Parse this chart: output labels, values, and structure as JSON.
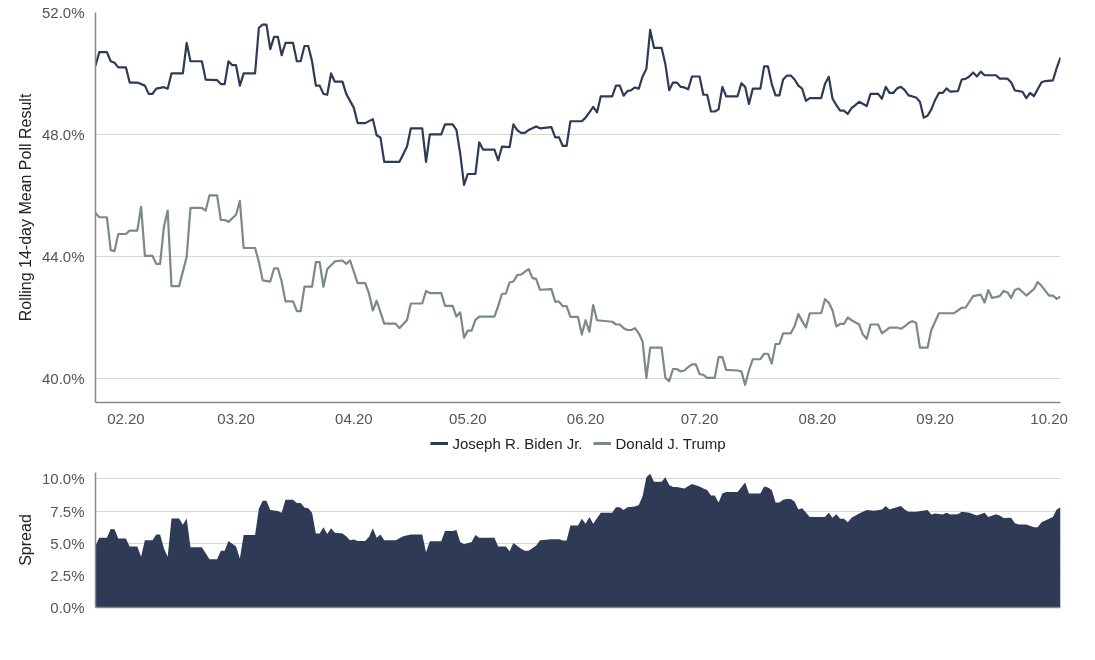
{
  "chart_data": [
    {
      "type": "line",
      "ylabel": "Rolling 14-day Mean Poll Result",
      "xlim": [
        "2020-01-24",
        "2020-10-04"
      ],
      "ylim": [
        39.2,
        52
      ],
      "xticks": [
        {
          "value": "2020-02-01",
          "label": "02.20"
        },
        {
          "value": "2020-03-01",
          "label": "03.20"
        },
        {
          "value": "2020-04-01",
          "label": "04.20"
        },
        {
          "value": "2020-05-01",
          "label": "05.20"
        },
        {
          "value": "2020-06-01",
          "label": "06.20"
        },
        {
          "value": "2020-07-01",
          "label": "07.20"
        },
        {
          "value": "2020-08-01",
          "label": "08.20"
        },
        {
          "value": "2020-09-01",
          "label": "09.20"
        },
        {
          "value": "2020-10-01",
          "label": "10.20"
        }
      ],
      "yticks": [
        {
          "value": 40,
          "label": "40.0%"
        },
        {
          "value": 44,
          "label": "44.0%"
        },
        {
          "value": 48,
          "label": "48.0%"
        },
        {
          "value": 52,
          "label": "52.0%"
        }
      ],
      "grid": "y",
      "legend": "bottom",
      "series": [
        {
          "name": "Joseph R. Biden Jr.",
          "color": "#2e3a56",
          "x": [
            "2020-01-24",
            "2020-01-25",
            "2020-01-27",
            "2020-01-28",
            "2020-01-29",
            "2020-01-30",
            "2020-02-01",
            "2020-02-02",
            "2020-02-04",
            "2020-02-06",
            "2020-02-07",
            "2020-02-08",
            "2020-02-09",
            "2020-02-11",
            "2020-02-12",
            "2020-02-13",
            "2020-02-16",
            "2020-02-17",
            "2020-02-18",
            "2020-02-21",
            "2020-02-22",
            "2020-02-25",
            "2020-02-26",
            "2020-02-27",
            "2020-02-28",
            "2020-02-29",
            "2020-03-01",
            "2020-03-02",
            "2020-03-03",
            "2020-03-06",
            "2020-03-07",
            "2020-03-08",
            "2020-03-09",
            "2020-03-10",
            "2020-03-11",
            "2020-03-12",
            "2020-03-13",
            "2020-03-14",
            "2020-03-16",
            "2020-03-17",
            "2020-03-18",
            "2020-03-19",
            "2020-03-20",
            "2020-03-21",
            "2020-03-22",
            "2020-03-23",
            "2020-03-24",
            "2020-03-25",
            "2020-03-26",
            "2020-03-27",
            "2020-03-29",
            "2020-03-30",
            "2020-04-01",
            "2020-04-02",
            "2020-04-04",
            "2020-04-06",
            "2020-04-07",
            "2020-04-08",
            "2020-04-09",
            "2020-04-13",
            "2020-04-14",
            "2020-04-15",
            "2020-04-16",
            "2020-04-19",
            "2020-04-20",
            "2020-04-21",
            "2020-04-24",
            "2020-04-25",
            "2020-04-27",
            "2020-04-28",
            "2020-04-29",
            "2020-04-30",
            "2020-05-01",
            "2020-05-03",
            "2020-05-04",
            "2020-05-05",
            "2020-05-08",
            "2020-05-09",
            "2020-05-10",
            "2020-05-12",
            "2020-05-13",
            "2020-05-14",
            "2020-05-15",
            "2020-05-16",
            "2020-05-17",
            "2020-05-19",
            "2020-05-20",
            "2020-05-23",
            "2020-05-24",
            "2020-05-25",
            "2020-05-26",
            "2020-05-27",
            "2020-05-28",
            "2020-05-31",
            "2020-06-01",
            "2020-06-02",
            "2020-06-03",
            "2020-06-04",
            "2020-06-05",
            "2020-06-08",
            "2020-06-09",
            "2020-06-10",
            "2020-06-11",
            "2020-06-12",
            "2020-06-13",
            "2020-06-14",
            "2020-06-15",
            "2020-06-16",
            "2020-06-17",
            "2020-06-18",
            "2020-06-19",
            "2020-06-21",
            "2020-06-22",
            "2020-06-23",
            "2020-06-24",
            "2020-06-25",
            "2020-06-26",
            "2020-06-27",
            "2020-06-28",
            "2020-06-29",
            "2020-07-01",
            "2020-07-02",
            "2020-07-03",
            "2020-07-04",
            "2020-07-05",
            "2020-07-06",
            "2020-07-07",
            "2020-07-08",
            "2020-07-11",
            "2020-07-12",
            "2020-07-13",
            "2020-07-14",
            "2020-07-15",
            "2020-07-17",
            "2020-07-18",
            "2020-07-19",
            "2020-07-20",
            "2020-07-21",
            "2020-07-22",
            "2020-07-23",
            "2020-07-24",
            "2020-07-25",
            "2020-07-26",
            "2020-07-27",
            "2020-07-28",
            "2020-07-29",
            "2020-07-30",
            "2020-08-02",
            "2020-08-03",
            "2020-08-04",
            "2020-08-05",
            "2020-08-06",
            "2020-08-07",
            "2020-08-08",
            "2020-08-09",
            "2020-08-10",
            "2020-08-11",
            "2020-08-12",
            "2020-08-14",
            "2020-08-15",
            "2020-08-17",
            "2020-08-18",
            "2020-08-19",
            "2020-08-20",
            "2020-08-21",
            "2020-08-22",
            "2020-08-23",
            "2020-08-24",
            "2020-08-25",
            "2020-08-27",
            "2020-08-28",
            "2020-08-29",
            "2020-08-30",
            "2020-08-31",
            "2020-09-01",
            "2020-09-02",
            "2020-09-03",
            "2020-09-04",
            "2020-09-05",
            "2020-09-07",
            "2020-09-08",
            "2020-09-09",
            "2020-09-10",
            "2020-09-11",
            "2020-09-12",
            "2020-09-13",
            "2020-09-14",
            "2020-09-17",
            "2020-09-18",
            "2020-09-20",
            "2020-09-21",
            "2020-09-22",
            "2020-09-23",
            "2020-09-24",
            "2020-09-25",
            "2020-09-26",
            "2020-09-27",
            "2020-09-28",
            "2020-09-29",
            "2020-09-30",
            "2020-10-02",
            "2020-10-03",
            "2020-10-04"
          ],
          "values": [
            50.25,
            50.7,
            50.7,
            50.4,
            50.35,
            50.2,
            50.2,
            49.7,
            49.7,
            49.6,
            49.33,
            49.33,
            49.5,
            49.55,
            49.5,
            50.0,
            50.0,
            51.0,
            50.4,
            50.4,
            49.8,
            49.78,
            49.65,
            49.65,
            50.4,
            50.27,
            50.27,
            49.6,
            50.0,
            50.0,
            51.5,
            51.6,
            51.6,
            50.8,
            51.2,
            51.2,
            50.6,
            51.0,
            51.0,
            50.4,
            50.4,
            50.9,
            50.9,
            50.4,
            49.6,
            49.6,
            49.33,
            49.3,
            50.0,
            49.73,
            49.73,
            49.33,
            48.87,
            48.37,
            48.37,
            48.5,
            47.97,
            47.9,
            47.1,
            47.1,
            47.35,
            47.6,
            48.2,
            48.2,
            47.1,
            48.0,
            48.0,
            48.33,
            48.33,
            48.15,
            47.37,
            46.34,
            46.7,
            46.7,
            47.74,
            47.5,
            47.5,
            47.15,
            47.6,
            47.58,
            48.33,
            48.14,
            48.05,
            48.05,
            48.14,
            48.26,
            48.2,
            48.24,
            47.9,
            47.9,
            47.62,
            47.62,
            48.43,
            48.43,
            48.55,
            48.72,
            48.9,
            48.72,
            49.25,
            49.25,
            49.6,
            49.6,
            49.27,
            49.42,
            49.45,
            49.54,
            49.5,
            49.9,
            50.15,
            51.43,
            50.84,
            50.84,
            50.3,
            49.45,
            49.7,
            49.7,
            49.56,
            49.54,
            49.48,
            49.9,
            49.9,
            49.3,
            49.3,
            48.75,
            48.75,
            48.82,
            49.56,
            49.25,
            49.25,
            49.68,
            49.56,
            49.0,
            49.5,
            49.5,
            50.23,
            50.23,
            49.65,
            49.28,
            49.28,
            49.8,
            49.93,
            49.93,
            49.8,
            49.6,
            49.5,
            49.1,
            49.19,
            49.19,
            49.65,
            49.89,
            49.17,
            48.96,
            48.78,
            48.78,
            48.67,
            48.86,
            48.96,
            49.07,
            48.93,
            49.33,
            49.33,
            49.17,
            49.56,
            49.36,
            49.36,
            49.51,
            49.56,
            49.45,
            49.28,
            49.21,
            49.07,
            48.55,
            48.61,
            48.82,
            49.13,
            49.36,
            49.36,
            49.51,
            49.4,
            49.42,
            49.8,
            49.82,
            49.9,
            50.03,
            49.9,
            50.06,
            49.94,
            49.94,
            49.83,
            49.83,
            49.71,
            49.44,
            49.42,
            49.4,
            49.19,
            49.36,
            49.25,
            49.48,
            49.71,
            49.75,
            49.77,
            50.18,
            50.52
          ]
        },
        {
          "name": "Donald J. Trump",
          "color": "#7a8c80",
          "x": [
            "2020-01-24",
            "2020-01-25",
            "2020-01-27",
            "2020-01-28",
            "2020-01-29",
            "2020-01-30",
            "2020-02-01",
            "2020-02-02",
            "2020-02-04",
            "2020-02-05",
            "2020-02-06",
            "2020-02-08",
            "2020-02-09",
            "2020-02-10",
            "2020-02-11",
            "2020-02-12",
            "2020-02-13",
            "2020-02-15",
            "2020-02-17",
            "2020-02-18",
            "2020-02-21",
            "2020-02-22",
            "2020-02-23",
            "2020-02-25",
            "2020-02-26",
            "2020-02-27",
            "2020-02-28",
            "2020-03-01",
            "2020-03-02",
            "2020-03-03",
            "2020-03-06",
            "2020-03-07",
            "2020-03-08",
            "2020-03-10",
            "2020-03-11",
            "2020-03-12",
            "2020-03-13",
            "2020-03-14",
            "2020-03-16",
            "2020-03-17",
            "2020-03-18",
            "2020-03-19",
            "2020-03-21",
            "2020-03-22",
            "2020-03-23",
            "2020-03-24",
            "2020-03-25",
            "2020-03-27",
            "2020-03-29",
            "2020-03-30",
            "2020-03-31",
            "2020-04-02",
            "2020-04-04",
            "2020-04-05",
            "2020-04-06",
            "2020-04-07",
            "2020-04-09",
            "2020-04-12",
            "2020-04-13",
            "2020-04-15",
            "2020-04-16",
            "2020-04-19",
            "2020-04-20",
            "2020-04-21",
            "2020-04-24",
            "2020-04-25",
            "2020-04-27",
            "2020-04-28",
            "2020-04-29",
            "2020-04-30",
            "2020-05-01",
            "2020-05-02",
            "2020-05-03",
            "2020-05-04",
            "2020-05-08",
            "2020-05-09",
            "2020-05-10",
            "2020-05-11",
            "2020-05-12",
            "2020-05-13",
            "2020-05-14",
            "2020-05-15",
            "2020-05-17",
            "2020-05-18",
            "2020-05-19",
            "2020-05-20",
            "2020-05-23",
            "2020-05-24",
            "2020-05-25",
            "2020-05-26",
            "2020-05-27",
            "2020-05-28",
            "2020-05-30",
            "2020-05-31",
            "2020-06-01",
            "2020-06-02",
            "2020-06-03",
            "2020-06-04",
            "2020-06-08",
            "2020-06-09",
            "2020-06-10",
            "2020-06-11",
            "2020-06-12",
            "2020-06-13",
            "2020-06-14",
            "2020-06-15",
            "2020-06-16",
            "2020-06-17",
            "2020-06-18",
            "2020-06-21",
            "2020-06-22",
            "2020-06-23",
            "2020-06-24",
            "2020-06-25",
            "2020-06-26",
            "2020-06-27",
            "2020-06-28",
            "2020-06-29",
            "2020-06-30",
            "2020-07-01",
            "2020-07-02",
            "2020-07-03",
            "2020-07-05",
            "2020-07-06",
            "2020-07-07",
            "2020-07-08",
            "2020-07-11",
            "2020-07-12",
            "2020-07-13",
            "2020-07-14",
            "2020-07-15",
            "2020-07-17",
            "2020-07-18",
            "2020-07-19",
            "2020-07-20",
            "2020-07-21",
            "2020-07-22",
            "2020-07-23",
            "2020-07-25",
            "2020-07-26",
            "2020-07-27",
            "2020-07-28",
            "2020-07-29",
            "2020-07-30",
            "2020-08-02",
            "2020-08-03",
            "2020-08-04",
            "2020-08-05",
            "2020-08-06",
            "2020-08-07",
            "2020-08-08",
            "2020-08-09",
            "2020-08-10",
            "2020-08-12",
            "2020-08-13",
            "2020-08-14",
            "2020-08-15",
            "2020-08-17",
            "2020-08-18",
            "2020-08-20",
            "2020-08-22",
            "2020-08-23",
            "2020-08-24",
            "2020-08-25",
            "2020-08-26",
            "2020-08-27",
            "2020-08-28",
            "2020-08-30",
            "2020-08-31",
            "2020-09-02",
            "2020-09-06",
            "2020-09-08",
            "2020-09-09",
            "2020-09-11",
            "2020-09-13",
            "2020-09-14",
            "2020-09-15",
            "2020-09-16",
            "2020-09-18",
            "2020-09-19",
            "2020-09-20",
            "2020-09-21",
            "2020-09-22",
            "2020-09-23",
            "2020-09-25",
            "2020-09-27",
            "2020-09-28",
            "2020-09-29",
            "2020-10-01",
            "2020-10-02",
            "2020-10-03",
            "2020-10-04"
          ],
          "values": [
            45.42,
            45.28,
            45.28,
            44.2,
            44.17,
            44.73,
            44.73,
            44.84,
            44.84,
            45.62,
            44.01,
            44.01,
            43.75,
            43.75,
            44.96,
            45.5,
            43.02,
            43.02,
            43.98,
            45.59,
            45.59,
            45.5,
            46.0,
            46.0,
            45.19,
            45.19,
            45.13,
            45.36,
            45.82,
            44.27,
            44.27,
            43.81,
            43.21,
            43.17,
            43.6,
            43.6,
            43.17,
            42.52,
            42.52,
            42.2,
            42.2,
            43.0,
            43.0,
            43.81,
            43.81,
            43.0,
            43.58,
            43.83,
            43.86,
            43.75,
            43.86,
            43.12,
            43.12,
            42.77,
            42.22,
            42.54,
            41.79,
            41.79,
            41.64,
            41.91,
            42.45,
            42.45,
            42.86,
            42.79,
            42.79,
            42.37,
            42.37,
            42.02,
            42.16,
            41.33,
            41.56,
            41.56,
            41.91,
            42.02,
            42.02,
            42.37,
            42.77,
            42.77,
            43.14,
            43.17,
            43.38,
            43.4,
            43.58,
            43.29,
            43.25,
            42.9,
            42.92,
            42.51,
            42.51,
            42.36,
            42.36,
            42.01,
            42.01,
            41.43,
            41.9,
            41.52,
            42.4,
            41.9,
            41.85,
            41.76,
            41.76,
            41.64,
            41.58,
            41.58,
            41.64,
            41.47,
            41.2,
            40.01,
            41.0,
            41.0,
            40.01,
            39.9,
            40.3,
            40.3,
            40.22,
            40.25,
            40.36,
            40.45,
            40.45,
            40.13,
            40.11,
            40.01,
            40.01,
            40.69,
            40.69,
            40.27,
            40.25,
            40.22,
            39.78,
            40.25,
            40.62,
            40.62,
            40.8,
            40.8,
            40.48,
            41.12,
            41.12,
            41.47,
            41.47,
            41.7,
            42.1,
            41.87,
            41.66,
            42.13,
            42.13,
            42.59,
            42.48,
            42.22,
            41.7,
            41.78,
            41.78,
            41.99,
            41.9,
            41.76,
            41.43,
            41.29,
            41.76,
            41.76,
            41.47,
            41.66,
            41.66,
            41.62,
            41.7,
            41.81,
            41.87,
            41.81,
            41.0,
            41.0,
            41.58,
            42.13,
            42.13,
            42.31,
            42.31,
            42.69,
            42.74,
            42.48,
            42.89,
            42.63,
            42.69,
            42.86,
            42.82,
            42.63,
            42.89,
            42.94,
            42.71,
            42.92,
            43.15,
            43.03,
            42.71,
            42.71,
            42.6,
            42.68
          ]
        }
      ]
    },
    {
      "type": "area",
      "ylabel": "Spread",
      "xlim": [
        "2020-01-24",
        "2020-10-04"
      ],
      "ylim": [
        0,
        10.5
      ],
      "yticks": [
        {
          "value": 0,
          "label": "0.0%"
        },
        {
          "value": 2.5,
          "label": "2.5%"
        },
        {
          "value": 5,
          "label": "5.0%"
        },
        {
          "value": 7.5,
          "label": "7.5%"
        },
        {
          "value": 10,
          "label": "10.0%"
        }
      ],
      "grid": "y",
      "tick_labels": "y",
      "color": "#2e3a56",
      "x": [
        "2020-01-24",
        "2020-01-25",
        "2020-01-27",
        "2020-01-28",
        "2020-01-29",
        "2020-01-30",
        "2020-02-01",
        "2020-02-02",
        "2020-02-04",
        "2020-02-05",
        "2020-02-06",
        "2020-02-08",
        "2020-02-09",
        "2020-02-10",
        "2020-02-11",
        "2020-02-12",
        "2020-02-13",
        "2020-02-15",
        "2020-02-16",
        "2020-02-17",
        "2020-02-18",
        "2020-02-21",
        "2020-02-23",
        "2020-02-25",
        "2020-02-26",
        "2020-02-27",
        "2020-02-28",
        "2020-03-01",
        "2020-03-02",
        "2020-03-03",
        "2020-03-06",
        "2020-03-07",
        "2020-03-08",
        "2020-03-09",
        "2020-03-10",
        "2020-03-12",
        "2020-03-13",
        "2020-03-14",
        "2020-03-16",
        "2020-03-17",
        "2020-03-18",
        "2020-03-19",
        "2020-03-20",
        "2020-03-21",
        "2020-03-22",
        "2020-03-23",
        "2020-03-24",
        "2020-03-25",
        "2020-03-26",
        "2020-03-27",
        "2020-03-29",
        "2020-03-30",
        "2020-03-31",
        "2020-04-01",
        "2020-04-02",
        "2020-04-04",
        "2020-04-05",
        "2020-04-06",
        "2020-04-07",
        "2020-04-08",
        "2020-04-09",
        "2020-04-12",
        "2020-04-14",
        "2020-04-16",
        "2020-04-19",
        "2020-04-20",
        "2020-04-21",
        "2020-04-24",
        "2020-04-25",
        "2020-04-27",
        "2020-04-28",
        "2020-04-29",
        "2020-04-30",
        "2020-05-02",
        "2020-05-03",
        "2020-05-04",
        "2020-05-08",
        "2020-05-09",
        "2020-05-11",
        "2020-05-12",
        "2020-05-13",
        "2020-05-15",
        "2020-05-16",
        "2020-05-17",
        "2020-05-19",
        "2020-05-20",
        "2020-05-23",
        "2020-05-25",
        "2020-05-26",
        "2020-05-27",
        "2020-05-28",
        "2020-05-30",
        "2020-05-31",
        "2020-06-01",
        "2020-06-02",
        "2020-06-03",
        "2020-06-05",
        "2020-06-08",
        "2020-06-09",
        "2020-06-10",
        "2020-06-11",
        "2020-06-12",
        "2020-06-14",
        "2020-06-15",
        "2020-06-16",
        "2020-06-17",
        "2020-06-18",
        "2020-06-19",
        "2020-06-21",
        "2020-06-22",
        "2020-06-23",
        "2020-06-24",
        "2020-06-25",
        "2020-06-27",
        "2020-06-29",
        "2020-07-01",
        "2020-07-02",
        "2020-07-03",
        "2020-07-04",
        "2020-07-05",
        "2020-07-06",
        "2020-07-07",
        "2020-07-08",
        "2020-07-11",
        "2020-07-13",
        "2020-07-14",
        "2020-07-17",
        "2020-07-18",
        "2020-07-19",
        "2020-07-20",
        "2020-07-21",
        "2020-07-22",
        "2020-07-23",
        "2020-07-24",
        "2020-07-25",
        "2020-07-26",
        "2020-07-27",
        "2020-07-28",
        "2020-07-30",
        "2020-08-03",
        "2020-08-04",
        "2020-08-05",
        "2020-08-06",
        "2020-08-07",
        "2020-08-08",
        "2020-08-09",
        "2020-08-10",
        "2020-08-12",
        "2020-08-14",
        "2020-08-16",
        "2020-08-18",
        "2020-08-19",
        "2020-08-20",
        "2020-08-21",
        "2020-08-23",
        "2020-08-24",
        "2020-08-25",
        "2020-08-27",
        "2020-08-30",
        "2020-08-31",
        "2020-09-01",
        "2020-09-03",
        "2020-09-04",
        "2020-09-05",
        "2020-09-07",
        "2020-09-08",
        "2020-09-10",
        "2020-09-12",
        "2020-09-14",
        "2020-09-15",
        "2020-09-17",
        "2020-09-18",
        "2020-09-19",
        "2020-09-21",
        "2020-09-22",
        "2020-09-23",
        "2020-09-25",
        "2020-09-27",
        "2020-09-28",
        "2020-09-29",
        "2020-10-01",
        "2020-10-02",
        "2020-10-03",
        "2020-10-04"
      ],
      "values": [
        4.83,
        5.42,
        5.42,
        6.11,
        6.09,
        5.36,
        5.36,
        4.75,
        4.75,
        3.94,
        5.23,
        5.23,
        5.68,
        5.68,
        4.61,
        3.94,
        6.92,
        6.92,
        6.43,
        6.92,
        4.69,
        4.69,
        3.75,
        3.75,
        4.42,
        4.42,
        5.17,
        4.75,
        3.81,
        5.63,
        5.63,
        7.69,
        8.31,
        8.31,
        7.59,
        7.51,
        7.37,
        8.39,
        8.39,
        8.12,
        8.12,
        7.77,
        7.72,
        7.37,
        5.76,
        5.76,
        6.25,
        5.71,
        6.17,
        5.82,
        5.76,
        5.55,
        5.23,
        5.28,
        5.17,
        5.17,
        5.5,
        6.17,
        5.42,
        5.68,
        5.23,
        5.23,
        5.55,
        5.68,
        5.68,
        4.29,
        5.15,
        5.15,
        5.95,
        5.95,
        6.03,
        5.09,
        4.91,
        5.09,
        5.63,
        5.42,
        5.42,
        4.75,
        4.75,
        4.37,
        5.01,
        4.56,
        4.42,
        4.42,
        4.83,
        5.23,
        5.3,
        5.3,
        5.22,
        5.22,
        6.37,
        6.37,
        6.91,
        6.51,
        7.04,
        6.51,
        7.37,
        7.37,
        7.8,
        7.8,
        7.58,
        7.8,
        7.85,
        7.98,
        8.66,
        10.13,
        10.4,
        9.78,
        9.78,
        10.13,
        9.52,
        9.38,
        9.38,
        9.25,
        9.6,
        9.41,
        9.25,
        9.14,
        8.71,
        8.71,
        8.17,
        8.87,
        8.98,
        8.98,
        9.73,
        8.87,
        8.87,
        9.41,
        9.33,
        9.14,
        8.17,
        8.17,
        8.39,
        8.44,
        8.44,
        8.25,
        7.63,
        7.72,
        7.04,
        7.04,
        7.37,
        6.99,
        7.26,
        6.91,
        6.91,
        6.64,
        6.99,
        7.31,
        7.58,
        7.53,
        7.63,
        7.9,
        7.63,
        7.72,
        7.9,
        7.63,
        7.45,
        7.45,
        7.58,
        7.23,
        7.31,
        7.23,
        7.37,
        7.23,
        7.26,
        7.45,
        7.37,
        7.15,
        7.37,
        7.04,
        7.26,
        7.15,
        6.96,
        6.99,
        6.56,
        6.45,
        6.45,
        6.24,
        6.24,
        6.64,
        6.91,
        7.04,
        7.63,
        7.8
      ]
    }
  ]
}
